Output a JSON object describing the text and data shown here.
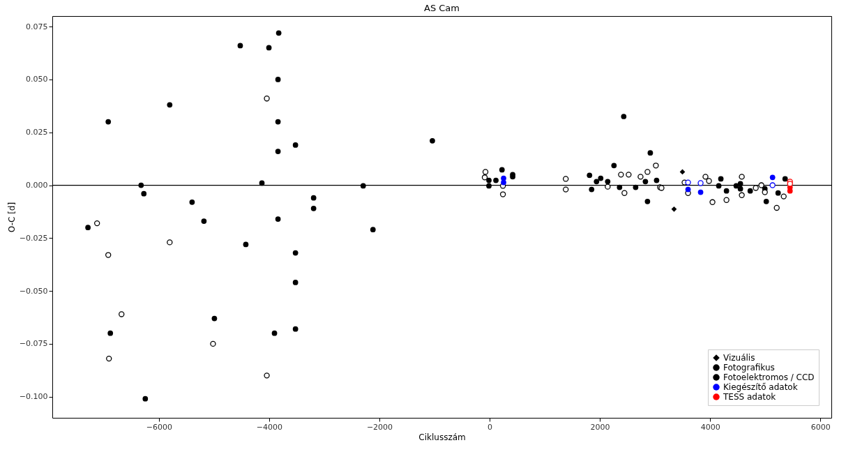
{
  "chart_data": {
    "type": "scatter",
    "title": "AS Cam",
    "xlabel": "Ciklusszám",
    "ylabel": "O-C [d]",
    "xlim": [
      -7935,
      6200
    ],
    "ylim": [
      -0.11,
      0.08
    ],
    "xticks": [
      -6000,
      -4000,
      -2000,
      0,
      2000,
      4000,
      6000
    ],
    "yticks": [
      {
        "value": -0.1,
        "label": "−0.100"
      },
      {
        "value": -0.075,
        "label": "−0.075"
      },
      {
        "value": -0.05,
        "label": "−0.050"
      },
      {
        "value": -0.025,
        "label": "−0.025"
      },
      {
        "value": 0,
        "label": "0.000"
      },
      {
        "value": 0.025,
        "label": "0.025"
      },
      {
        "value": 0.05,
        "label": "0.050"
      },
      {
        "value": 0.075,
        "label": "0.075"
      }
    ],
    "grid": false,
    "legend": "bottom right",
    "ref_lines": [
      {
        "axis": "y",
        "value": 0,
        "color": "#000000"
      }
    ],
    "series": [
      {
        "name": "Vizuális",
        "color": "#000000",
        "marker": "diamond",
        "x": [
          3498,
          3346
        ],
        "values": [
          0.0063,
          -0.0113
        ]
      },
      {
        "name": "Fotografikus",
        "color": "#000000",
        "marker": "circle",
        "x": [
          -7288,
          -6920,
          -6882,
          -6324,
          -6274,
          -6248,
          -5805,
          -5399,
          -5184,
          -4994,
          -4525,
          -4424,
          -4132,
          -4005,
          -3827,
          -3840,
          -3840,
          -3840,
          -3840,
          -3904,
          -3523,
          -3523,
          -3523,
          -3523,
          -3194,
          -3194,
          -2294,
          -2117,
          -1039
        ],
        "values": [
          -0.02,
          0.03,
          -0.07,
          0.0,
          -0.004,
          -0.101,
          0.038,
          -0.008,
          -0.017,
          -0.063,
          0.066,
          -0.028,
          0.001,
          0.065,
          0.072,
          0.05,
          0.03,
          0.016,
          -0.016,
          -0.07,
          0.019,
          -0.032,
          -0.046,
          -0.068,
          -0.006,
          -0.011,
          -0.0003,
          -0.021,
          0.021
        ]
      },
      {
        "color": "#000000",
        "marker": "circle",
        "x": [
          -7123,
          -6920,
          -6679,
          -6907,
          -5805,
          -5019,
          -4043,
          -4043
        ],
        "values": [
          -0.018,
          -0.033,
          -0.061,
          -0.082,
          -0.027,
          -0.075,
          0.041,
          -0.09
        ]
      },
      {
        "name": "Fotoelektromos / CCD",
        "color": "#000000",
        "marker": "circle",
        "x": [
          224,
          -13,
          -13,
          114,
          418,
          418,
          1812,
          1850,
          1939,
          2015,
          2142,
          2256,
          2433,
          2357,
          2649,
          2826,
          2915,
          2864,
          3029,
          4195,
          4157,
          4297,
          4474,
          4550,
          4550,
          4728,
          4994,
          5019,
          5361,
          5234
        ],
        "values": [
          0.0073,
          0.0023,
          -0.0003,
          0.0023,
          0.005,
          0.004,
          0.0047,
          -0.002,
          0.0017,
          0.0033,
          0.0017,
          0.0093,
          0.0325,
          -0.001,
          -0.001,
          0.0017,
          0.0153,
          -0.0077,
          0.0023,
          0.003,
          -0.0003,
          -0.0027,
          -0.0003,
          0.0007,
          -0.0017,
          -0.0027,
          -0.0017,
          -0.0077,
          0.003,
          -0.0037
        ]
      },
      {
        "color": "#000000",
        "marker": "circle",
        "x": [
          -76,
          -89,
          241,
          241,
          1381,
          1381,
          2383,
          2522,
          2142,
          2446,
          2864,
          3016,
          2738,
          3092,
          3118,
          3536,
          3600,
          3916,
          3980,
          4043,
          4297,
          4575,
          4575,
          4829,
          4930,
          4994,
          5209,
          5336
        ],
        "values": [
          0.0063,
          0.0037,
          -0.0043,
          -0.0003,
          0.003,
          -0.002,
          0.005,
          0.005,
          -0.0007,
          -0.0037,
          0.0063,
          0.0093,
          0.004,
          -0.001,
          -0.0013,
          0.0013,
          -0.0037,
          0.004,
          0.002,
          -0.008,
          -0.007,
          0.004,
          -0.0047,
          -0.0013,
          0.0,
          -0.0033,
          -0.0107,
          -0.0053
        ]
      },
      {
        "name": "Kiegészítő adatok",
        "color": "#0000ff",
        "marker": "circle",
        "x": [
          253,
          253,
          3600,
          3828,
          5133
        ],
        "values": [
          0.0033,
          0.0013,
          -0.002,
          -0.0033,
          0.0037
        ]
      },
      {
        "color": "#0000ff",
        "marker": "circle",
        "x": [
          3600,
          3828,
          5133
        ],
        "values": [
          0.0013,
          0.001,
          0.0
        ]
      },
      {
        "name": "TESS adatok",
        "color": "#ff0000",
        "marker": "circle",
        "x": [
          5450,
          5450
        ],
        "values": [
          -0.001,
          -0.0027
        ]
      },
      {
        "color": "#ff0000",
        "marker": "circle",
        "x": [
          5450,
          5450
        ],
        "values": [
          0.0017,
          0.0007
        ]
      }
    ]
  }
}
